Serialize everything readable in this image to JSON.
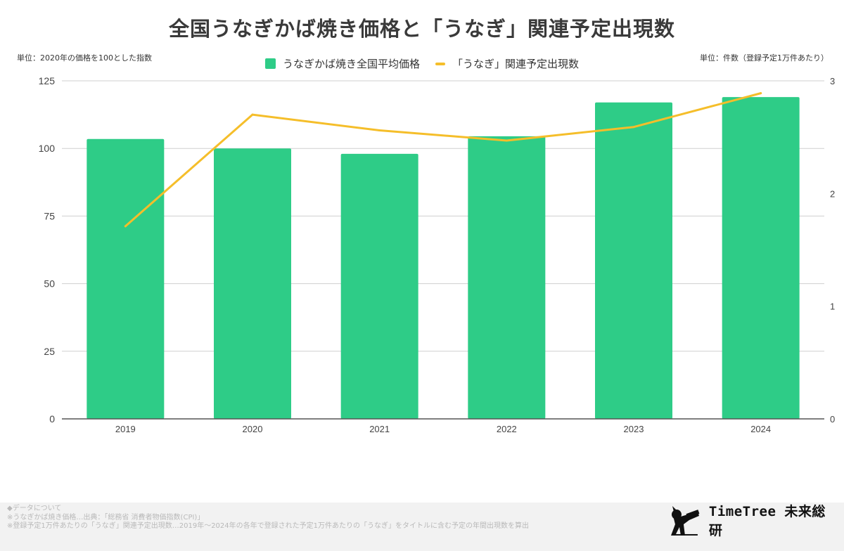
{
  "colors": {
    "bar": "#2ecc87",
    "line": "#f5be2a",
    "grid": "#cfcfcf",
    "axis": "#555555",
    "text": "#444444"
  },
  "title": "全国うなぎかば焼き価格と「うなぎ」関連予定出現数",
  "unit_left": "単位：2020年の価格を100とした指数",
  "unit_right": "単位：件数（登録予定1万件あたり）",
  "legend": {
    "bar_label": "うなぎかば焼き全国平均価格",
    "line_label": "「うなぎ」関連予定出現数"
  },
  "chart_data": {
    "type": "bar",
    "categories": [
      "2019",
      "2020",
      "2021",
      "2022",
      "2023",
      "2024"
    ],
    "series": [
      {
        "name": "うなぎかば焼き全国平均価格",
        "type": "bar",
        "axis": "left",
        "values": [
          103.5,
          100,
          98,
          104.5,
          117,
          119
        ]
      },
      {
        "name": "「うなぎ」関連予定出現数",
        "type": "line",
        "axis": "right",
        "values": [
          1.71,
          2.7,
          2.56,
          2.47,
          2.59,
          2.89
        ]
      }
    ],
    "y_left": {
      "ylim": [
        0,
        125
      ],
      "ticks": [
        "0",
        "25",
        "50",
        "75",
        "100",
        "125"
      ]
    },
    "y_right": {
      "ylim": [
        0,
        3
      ],
      "ticks": [
        "0",
        "1",
        "2",
        "3"
      ]
    },
    "grid": true,
    "legend_position": "top-center"
  },
  "footer": {
    "heading": "◆データについて",
    "line1": "※うなぎかば焼き価格…出典：「総務省 消費者物価指数(CPI)」",
    "line2": "※登録予定1万件あたりの「うなぎ」関連予定出現数…2019年〜2024年の各年で登録された予定1万件あたりの「うなぎ」をタイトルに含む予定の年間出現数を算出"
  },
  "logo": {
    "text": "TimeTree 未来総研",
    "icon": "bird-telescope-icon"
  }
}
